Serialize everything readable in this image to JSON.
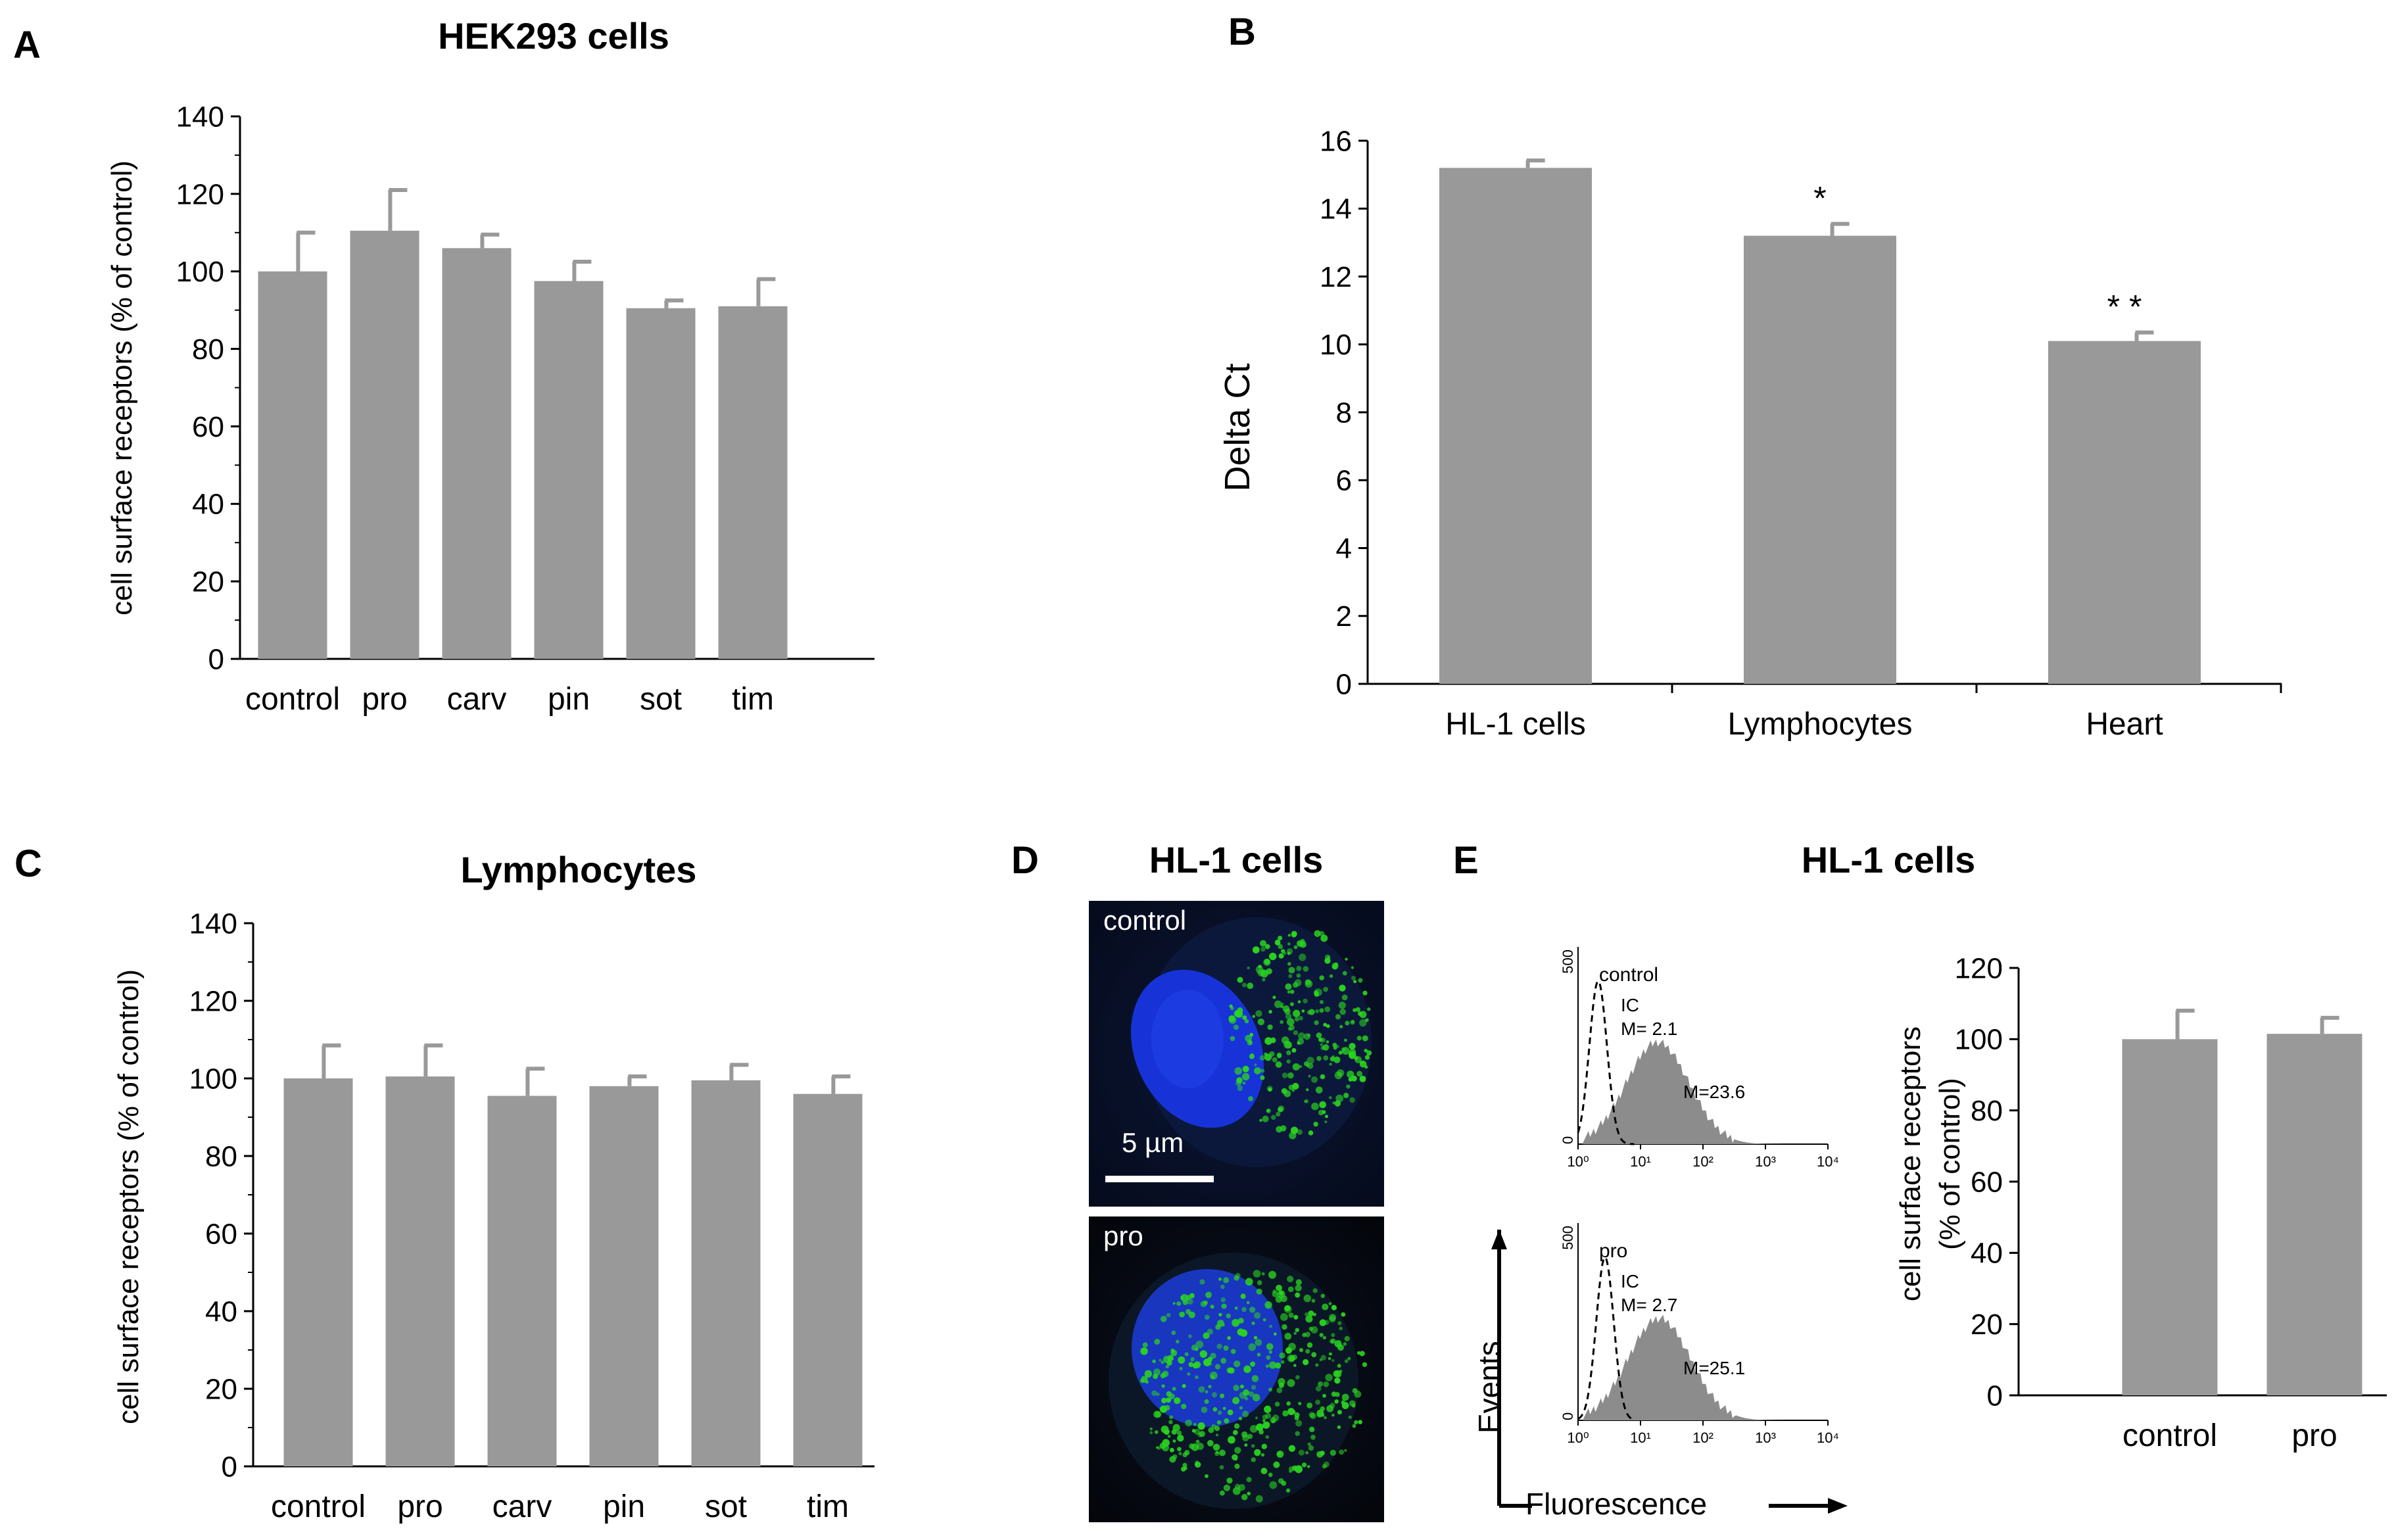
{
  "panels": {
    "A": {
      "letter": "A",
      "title": "HEK293 cells"
    },
    "B": {
      "letter": "B"
    },
    "C": {
      "letter": "C",
      "title": "Lymphocytes"
    },
    "D": {
      "letter": "D",
      "title": "HL-1 cells",
      "image_labels": [
        "control",
        "pro"
      ],
      "scale_label": "5 µm"
    },
    "E": {
      "letter": "E",
      "title": "HL-1 cells",
      "y_axis_label": "Events",
      "x_axis_label": "Fluorescence"
    }
  },
  "colors": {
    "bar": "#999999",
    "axis": "#000000",
    "histogram": "#8c8c8c",
    "nucleus": "#1530d8",
    "receptor": "#25c81e"
  },
  "chart_data": [
    {
      "id": "A",
      "type": "bar",
      "title": "HEK293 cells",
      "categories": [
        "control",
        "pro",
        "carv",
        "pin",
        "sot",
        "tim"
      ],
      "values": [
        100,
        110.5,
        106,
        97.5,
        90.5,
        91
      ],
      "errors": [
        10,
        10.5,
        3.5,
        5,
        2,
        7
      ],
      "ylabel": "cell surface receptors (% of control)",
      "ylim": [
        0,
        140
      ],
      "yticks": [
        0,
        20,
        40,
        60,
        80,
        100,
        120,
        140
      ],
      "ytick_labels": [
        "0",
        "20",
        "40",
        "60",
        "80",
        "100",
        "120",
        "140"
      ],
      "minor_ticks": true
    },
    {
      "id": "B",
      "type": "bar",
      "categories": [
        "HL-1 cells",
        "Lymphocytes",
        "Heart"
      ],
      "values": [
        15.2,
        13.2,
        10.1
      ],
      "errors": [
        0.22,
        0.35,
        0.25
      ],
      "annotations": [
        "",
        "*",
        "* *"
      ],
      "ylabel": "Delta Ct",
      "ylim": [
        0,
        16
      ],
      "yticks": [
        0,
        2,
        4,
        6,
        8,
        10,
        12,
        14,
        16
      ],
      "ytick_labels": [
        "0",
        "2",
        "4",
        "6",
        "8",
        "10",
        "12",
        "14",
        "16"
      ]
    },
    {
      "id": "C",
      "type": "bar",
      "title": "Lymphocytes",
      "categories": [
        "control",
        "pro",
        "carv",
        "pin",
        "sot",
        "tim"
      ],
      "values": [
        100,
        100.5,
        95.5,
        98,
        99.5,
        96
      ],
      "errors": [
        8.5,
        8,
        7,
        2.5,
        4,
        4.5
      ],
      "ylabel": "cell surface receptors (% of control)",
      "ylim": [
        0,
        140
      ],
      "yticks": [
        0,
        20,
        40,
        60,
        80,
        100,
        120,
        140
      ],
      "ytick_labels": [
        "0",
        "20",
        "40",
        "60",
        "80",
        "100",
        "120",
        "140"
      ],
      "minor_ticks": true
    },
    {
      "id": "E-bar",
      "type": "bar",
      "categories": [
        "control",
        "pro"
      ],
      "values": [
        100,
        101.5
      ],
      "errors": [
        8,
        4.5
      ],
      "ylabel_lines": [
        "cell surface receptors",
        "(% of control)"
      ],
      "ylim": [
        0,
        120
      ],
      "yticks": [
        0,
        20,
        40,
        60,
        80,
        100,
        120
      ],
      "ytick_labels": [
        "0",
        "20",
        "40",
        "60",
        "80",
        "100",
        "120"
      ]
    },
    {
      "id": "E-hist-control",
      "type": "area",
      "label": "control",
      "isotype_label": "IC",
      "isotype_mfi_label": "M= 2.1",
      "mfi_label": "M=23.6",
      "isotype_mfi": 2.1,
      "mfi": 23.6,
      "y_max_label": "500",
      "y_min_label": "0",
      "x_ticks": [
        "10⁰",
        "10¹",
        "10²",
        "10³",
        "10⁴"
      ]
    },
    {
      "id": "E-hist-pro",
      "type": "area",
      "label": "pro",
      "isotype_label": "IC",
      "isotype_mfi_label": "M= 2.7",
      "mfi_label": "M=25.1",
      "isotype_mfi": 2.7,
      "mfi": 25.1,
      "y_max_label": "500",
      "y_min_label": "0",
      "x_ticks": [
        "10⁰",
        "10¹",
        "10²",
        "10³",
        "10⁴"
      ]
    }
  ]
}
